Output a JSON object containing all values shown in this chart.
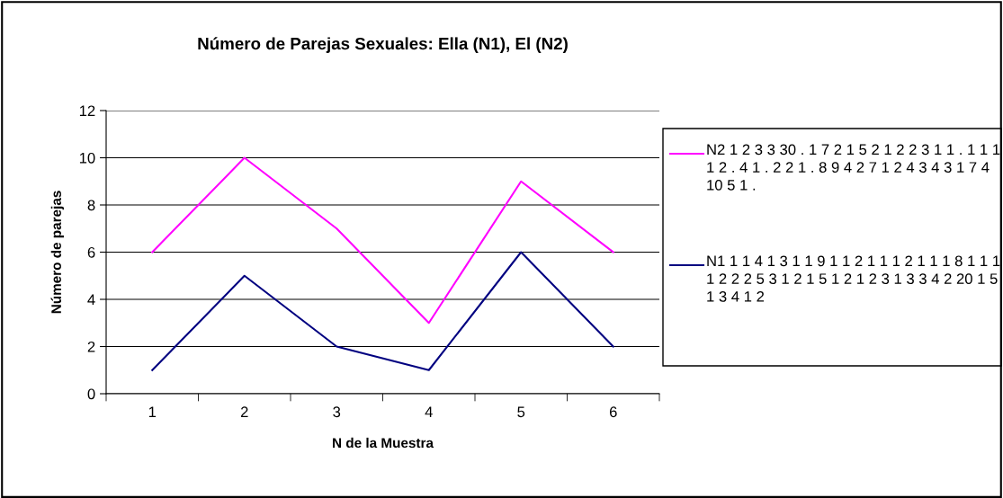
{
  "chart_data": {
    "type": "line",
    "title": "Número de Parejas Sexuales: Ella (N1), El (N2)",
    "xlabel": "N de la Muestra",
    "ylabel": "Número de parejas",
    "categories": [
      "1",
      "2",
      "3",
      "4",
      "5",
      "6"
    ],
    "series": [
      {
        "name": "N2 1 2 3 3 30 . 1 7 2 1 5 2 1 2 2 3 1 1 . 1 1 1 1 2 . 4 1 . 2 2 1 . 8 9 4 2 7 1 2 4 3 4 3 1 7 4 10 5 1 .",
        "color": "#ff00ff",
        "values": [
          6,
          10,
          7,
          3,
          9,
          6
        ]
      },
      {
        "name": "N1 1 1 4 1 3 1 1 9 1 1 2 1 1 1 2 1 1 1 8 1 1 1 1 2 2 2 5 3 1 2 1 5 1 2 1 2 3 1 3 3 4 2 20 1 5 1 3 4 1 2",
        "color": "#000080",
        "values": [
          1,
          5,
          2,
          1,
          6,
          2
        ]
      }
    ],
    "ylim": [
      0,
      12
    ],
    "yticks": [
      0,
      2,
      4,
      6,
      8,
      10,
      12
    ],
    "grid": "y",
    "legend": "right",
    "marker": "none",
    "line_style": "solid"
  }
}
